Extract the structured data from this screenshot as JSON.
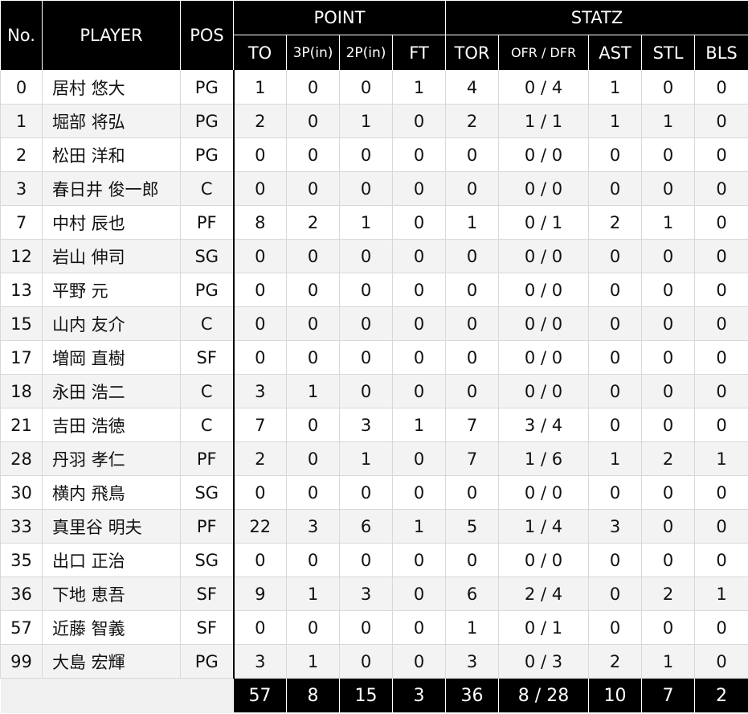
{
  "headers": {
    "no": "No.",
    "player": "PLAYER",
    "pos": "POS",
    "point_group": "POINT",
    "statz_group": "STATZ",
    "to": "TO",
    "p3": "3P(in)",
    "p2": "2P(in)",
    "ft": "FT",
    "tor": "TOR",
    "ofr_dfr": "OFR / DFR",
    "ast": "AST",
    "stl": "STL",
    "bls": "BLS"
  },
  "rows": [
    {
      "no": "0",
      "player": "居村 悠大",
      "pos": "PG",
      "to": "1",
      "p3": "0",
      "p2": "0",
      "ft": "1",
      "tor": "4",
      "ofr_dfr": "0 / 4",
      "ast": "1",
      "stl": "0",
      "bls": "0"
    },
    {
      "no": "1",
      "player": "堀部 将弘",
      "pos": "PG",
      "to": "2",
      "p3": "0",
      "p2": "1",
      "ft": "0",
      "tor": "2",
      "ofr_dfr": "1 / 1",
      "ast": "1",
      "stl": "1",
      "bls": "0"
    },
    {
      "no": "2",
      "player": "松田 洋和",
      "pos": "PG",
      "to": "0",
      "p3": "0",
      "p2": "0",
      "ft": "0",
      "tor": "0",
      "ofr_dfr": "0 / 0",
      "ast": "0",
      "stl": "0",
      "bls": "0"
    },
    {
      "no": "3",
      "player": "春日井 俊一郎",
      "pos": "C",
      "to": "0",
      "p3": "0",
      "p2": "0",
      "ft": "0",
      "tor": "0",
      "ofr_dfr": "0 / 0",
      "ast": "0",
      "stl": "0",
      "bls": "0"
    },
    {
      "no": "7",
      "player": "中村 辰也",
      "pos": "PF",
      "to": "8",
      "p3": "2",
      "p2": "1",
      "ft": "0",
      "tor": "1",
      "ofr_dfr": "0 / 1",
      "ast": "2",
      "stl": "1",
      "bls": "0"
    },
    {
      "no": "12",
      "player": "岩山 伸司",
      "pos": "SG",
      "to": "0",
      "p3": "0",
      "p2": "0",
      "ft": "0",
      "tor": "0",
      "ofr_dfr": "0 / 0",
      "ast": "0",
      "stl": "0",
      "bls": "0"
    },
    {
      "no": "13",
      "player": "平野 元",
      "pos": "PG",
      "to": "0",
      "p3": "0",
      "p2": "0",
      "ft": "0",
      "tor": "0",
      "ofr_dfr": "0 / 0",
      "ast": "0",
      "stl": "0",
      "bls": "0"
    },
    {
      "no": "15",
      "player": "山内 友介",
      "pos": "C",
      "to": "0",
      "p3": "0",
      "p2": "0",
      "ft": "0",
      "tor": "0",
      "ofr_dfr": "0 / 0",
      "ast": "0",
      "stl": "0",
      "bls": "0"
    },
    {
      "no": "17",
      "player": "増岡 直樹",
      "pos": "SF",
      "to": "0",
      "p3": "0",
      "p2": "0",
      "ft": "0",
      "tor": "0",
      "ofr_dfr": "0 / 0",
      "ast": "0",
      "stl": "0",
      "bls": "0"
    },
    {
      "no": "18",
      "player": "永田 浩二",
      "pos": "C",
      "to": "3",
      "p3": "1",
      "p2": "0",
      "ft": "0",
      "tor": "0",
      "ofr_dfr": "0 / 0",
      "ast": "0",
      "stl": "0",
      "bls": "0"
    },
    {
      "no": "21",
      "player": "吉田 浩徳",
      "pos": "C",
      "to": "7",
      "p3": "0",
      "p2": "3",
      "ft": "1",
      "tor": "7",
      "ofr_dfr": "3 / 4",
      "ast": "0",
      "stl": "0",
      "bls": "0"
    },
    {
      "no": "28",
      "player": "丹羽 孝仁",
      "pos": "PF",
      "to": "2",
      "p3": "0",
      "p2": "1",
      "ft": "0",
      "tor": "7",
      "ofr_dfr": "1 / 6",
      "ast": "1",
      "stl": "2",
      "bls": "1"
    },
    {
      "no": "30",
      "player": "横内 飛鳥",
      "pos": "SG",
      "to": "0",
      "p3": "0",
      "p2": "0",
      "ft": "0",
      "tor": "0",
      "ofr_dfr": "0 / 0",
      "ast": "0",
      "stl": "0",
      "bls": "0"
    },
    {
      "no": "33",
      "player": "真里谷 明夫",
      "pos": "PF",
      "to": "22",
      "p3": "3",
      "p2": "6",
      "ft": "1",
      "tor": "5",
      "ofr_dfr": "1 / 4",
      "ast": "3",
      "stl": "0",
      "bls": "0"
    },
    {
      "no": "35",
      "player": "出口 正治",
      "pos": "SG",
      "to": "0",
      "p3": "0",
      "p2": "0",
      "ft": "0",
      "tor": "0",
      "ofr_dfr": "0 / 0",
      "ast": "0",
      "stl": "0",
      "bls": "0"
    },
    {
      "no": "36",
      "player": "下地 恵吾",
      "pos": "SF",
      "to": "9",
      "p3": "1",
      "p2": "3",
      "ft": "0",
      "tor": "6",
      "ofr_dfr": "2 / 4",
      "ast": "0",
      "stl": "2",
      "bls": "1"
    },
    {
      "no": "57",
      "player": "近藤 智義",
      "pos": "SF",
      "to": "0",
      "p3": "0",
      "p2": "0",
      "ft": "0",
      "tor": "1",
      "ofr_dfr": "0 / 1",
      "ast": "0",
      "stl": "0",
      "bls": "0"
    },
    {
      "no": "99",
      "player": "大島 宏輝",
      "pos": "PG",
      "to": "3",
      "p3": "1",
      "p2": "0",
      "ft": "0",
      "tor": "3",
      "ofr_dfr": "0 / 3",
      "ast": "2",
      "stl": "1",
      "bls": "0"
    }
  ],
  "totals": {
    "to": "57",
    "p3": "8",
    "p2": "15",
    "ft": "3",
    "tor": "36",
    "ofr_dfr": "8 / 28",
    "ast": "10",
    "stl": "7",
    "bls": "2"
  }
}
